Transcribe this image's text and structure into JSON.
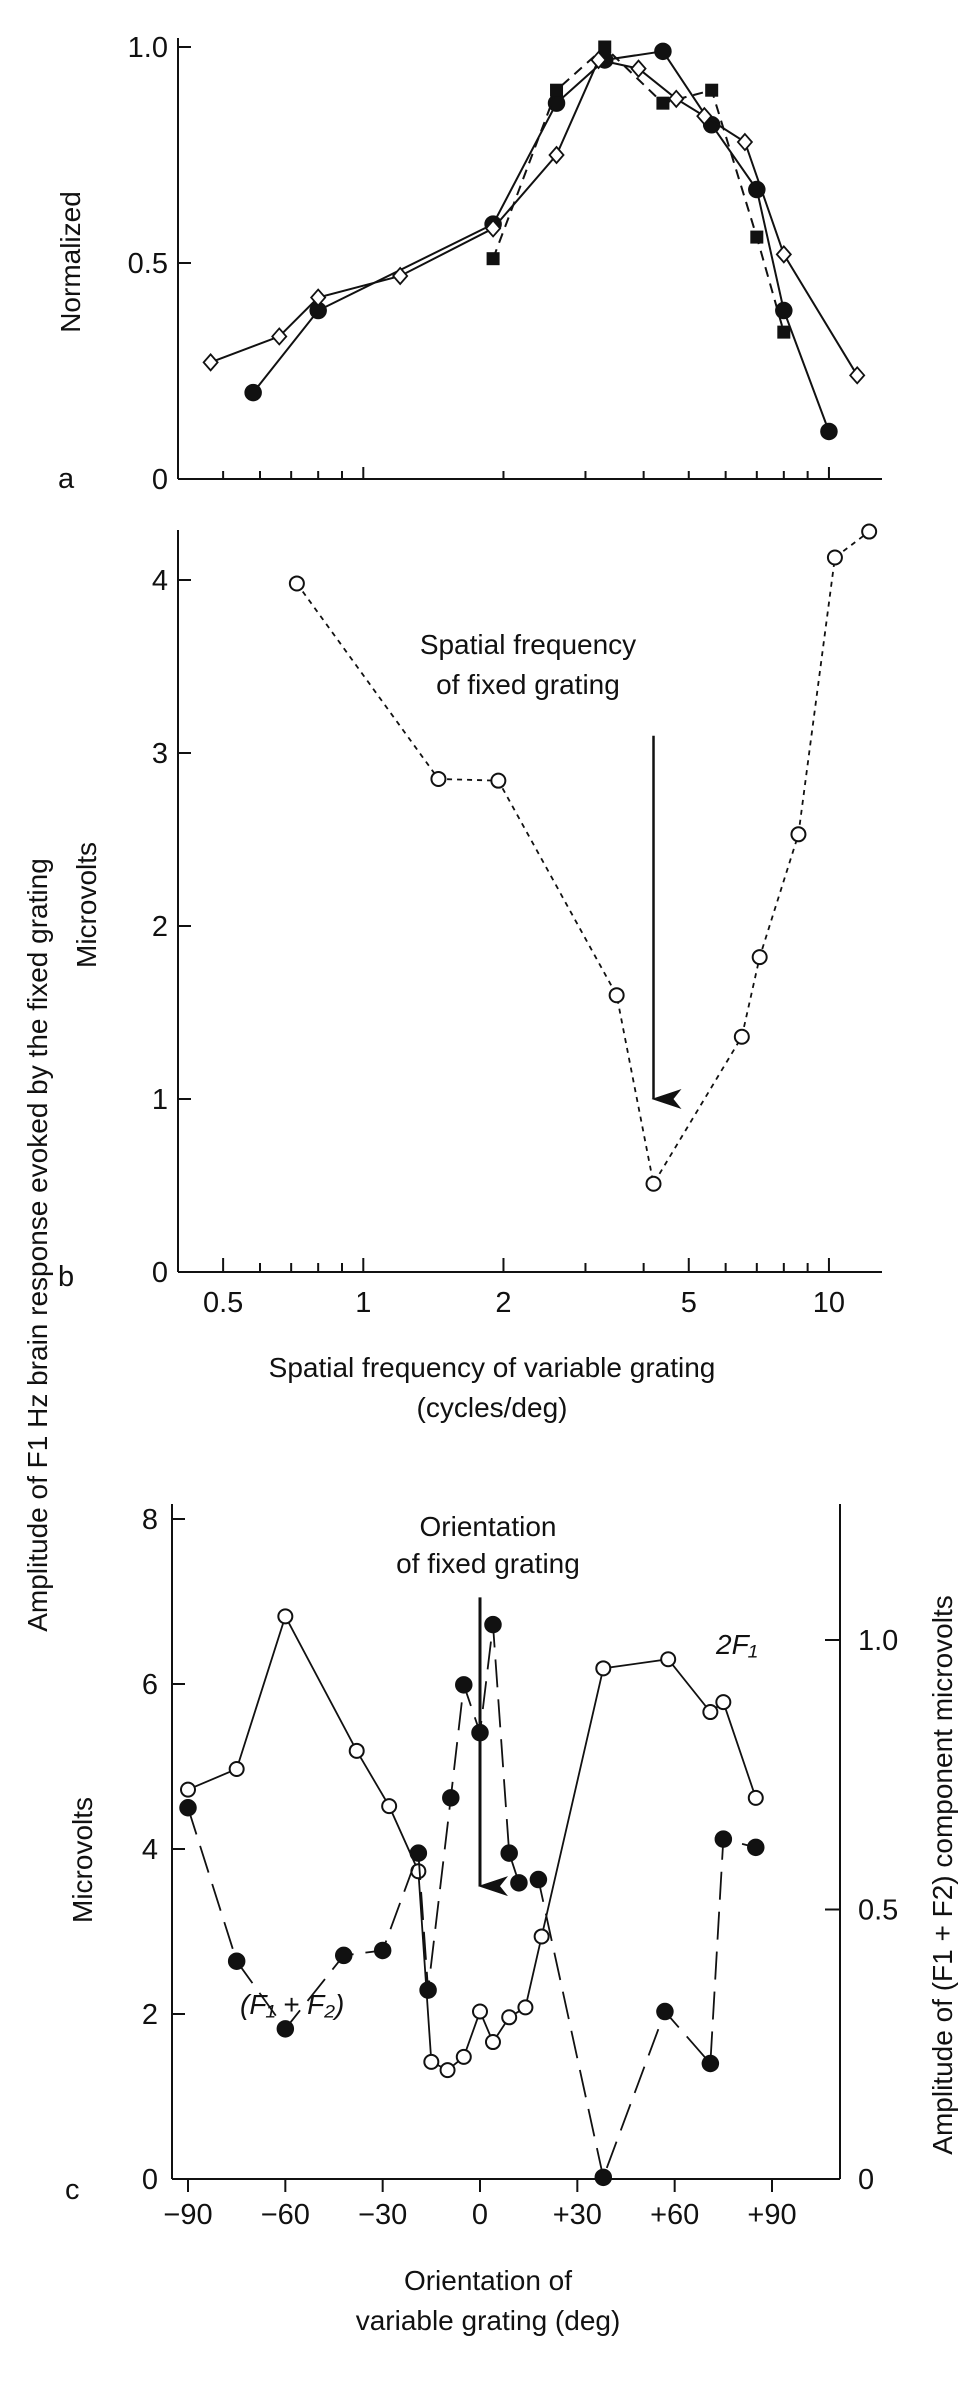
{
  "chart_data": [
    {
      "panel": "a",
      "type": "line",
      "ylabel": "Normalized",
      "xscale": "log",
      "xlim": [
        0.4,
        13
      ],
      "ylim": [
        0,
        1.0
      ],
      "yticks": [
        0,
        0.5,
        1.0
      ],
      "ytick_labels": [
        "0",
        "0.5",
        "1.0"
      ],
      "series": [
        {
          "name": "filled circles (solid line)",
          "marker": "filled-circle",
          "line": "solid",
          "x": [
            0.58,
            0.8,
            1.9,
            2.6,
            3.3,
            4.4,
            5.6,
            7.0,
            8.0,
            10.0
          ],
          "y": [
            0.2,
            0.39,
            0.59,
            0.87,
            0.97,
            0.99,
            0.82,
            0.67,
            0.39,
            0.11
          ]
        },
        {
          "name": "filled squares (dashed line)",
          "marker": "filled-square",
          "line": "dashed",
          "x": [
            1.9,
            2.6,
            3.3,
            4.4,
            5.6,
            7.0,
            8.0
          ],
          "y": [
            0.51,
            0.9,
            1.0,
            0.87,
            0.9,
            0.56,
            0.34
          ]
        },
        {
          "name": "open diamonds (solid line)",
          "marker": "open-diamond",
          "line": "solid",
          "x": [
            0.47,
            0.66,
            0.8,
            1.2,
            1.9,
            2.6,
            3.2,
            3.9,
            4.7,
            5.4,
            6.6,
            8.0,
            11.5
          ],
          "y": [
            0.27,
            0.33,
            0.42,
            0.47,
            0.58,
            0.75,
            0.97,
            0.95,
            0.88,
            0.84,
            0.78,
            0.52,
            0.24
          ]
        }
      ]
    },
    {
      "panel": "b",
      "type": "line",
      "ylabel": "Microvolts",
      "xlabel_line1": "Spatial frequency of variable grating",
      "xlabel_line2": "(cycles/deg)",
      "xscale": "log",
      "xlim": [
        0.4,
        13
      ],
      "ylim": [
        0,
        4.3
      ],
      "xticks": [
        0.5,
        1,
        2,
        5,
        10
      ],
      "xtick_labels": [
        "0.5",
        "1",
        "2",
        "5",
        "10"
      ],
      "yticks": [
        0,
        1,
        2,
        3,
        4
      ],
      "ytick_labels": [
        "0",
        "1",
        "2",
        "3",
        "4"
      ],
      "series": [
        {
          "name": "open circles (dotted line)",
          "marker": "open-circle",
          "line": "dotted",
          "x": [
            0.72,
            1.45,
            1.95,
            3.5,
            4.2,
            6.5,
            7.1,
            8.6,
            10.3,
            12.2
          ],
          "y": [
            3.98,
            2.85,
            2.84,
            1.6,
            0.51,
            1.36,
            1.82,
            2.53,
            4.13,
            4.28
          ]
        }
      ],
      "annotation_line1": "Spatial frequency",
      "annotation_line2": "of fixed grating",
      "annotation_arrow_x": 4.2,
      "annotation_arrow_from_y": 3.1,
      "annotation_arrow_to_y": 1.0
    },
    {
      "panel": "c",
      "type": "line",
      "ylabel_left": "Microvolts",
      "ylabel_right": "Amplitude of (F1 + F2) component microvolts",
      "xlabel_line1": "Orientation of",
      "xlabel_line2": "variable grating (deg)",
      "xlim": [
        -97,
        97
      ],
      "ylim_left": [
        0,
        8.3
      ],
      "ylim_right": [
        0,
        1.25
      ],
      "xticks": [
        -90,
        -60,
        -30,
        0,
        30,
        60,
        90
      ],
      "xtick_labels": [
        "−90",
        "−60",
        "−30",
        "0",
        "+30",
        "+60",
        "+90"
      ],
      "yticks_left": [
        0,
        2,
        4,
        6,
        8
      ],
      "ytick_labels_left": [
        "0",
        "2",
        "4",
        "6",
        "8"
      ],
      "yticks_right": [
        0,
        0.5,
        1.0
      ],
      "ytick_labels_right": [
        "0",
        "0.5",
        "1.0"
      ],
      "series": [
        {
          "name": "2F1",
          "marker": "open-circle",
          "line": "solid",
          "axis": "left",
          "x": [
            -90,
            -75,
            -60,
            -38,
            -28,
            -19,
            -15,
            -10,
            -5,
            0,
            4,
            9,
            14,
            19,
            38,
            58,
            71,
            75,
            85
          ],
          "y": [
            4.72,
            4.97,
            6.82,
            5.19,
            4.52,
            3.73,
            1.42,
            1.32,
            1.48,
            2.03,
            1.66,
            1.96,
            2.08,
            2.94,
            6.19,
            6.3,
            5.66,
            5.78,
            4.62
          ]
        },
        {
          "name": "(F1 + F2)",
          "marker": "filled-circle",
          "line": "dashed",
          "axis": "left",
          "x": [
            -90,
            -75,
            -60,
            -42,
            -30,
            -19,
            -16,
            -9,
            -5,
            0,
            4,
            9,
            12,
            18,
            38,
            57,
            71,
            75,
            85
          ],
          "y": [
            4.5,
            2.64,
            1.82,
            2.71,
            2.77,
            3.95,
            2.29,
            4.62,
            5.99,
            5.41,
            6.72,
            3.95,
            3.59,
            3.63,
            0.02,
            2.03,
            1.4,
            4.12,
            4.02
          ]
        }
      ],
      "label_2F1": "2F₁",
      "label_F1F2": "(F₁ + F₂)",
      "annotation_line1": "Orientation",
      "annotation_line2": "of fixed grating",
      "annotation_arrow_x": 0,
      "annotation_arrow_from_y": 7.05,
      "annotation_arrow_to_y": 3.55
    }
  ],
  "shared_ylabel": "Amplitude of F1 Hz brain response evoked by the fixed grating",
  "panel_letters": [
    "a",
    "b",
    "c"
  ]
}
